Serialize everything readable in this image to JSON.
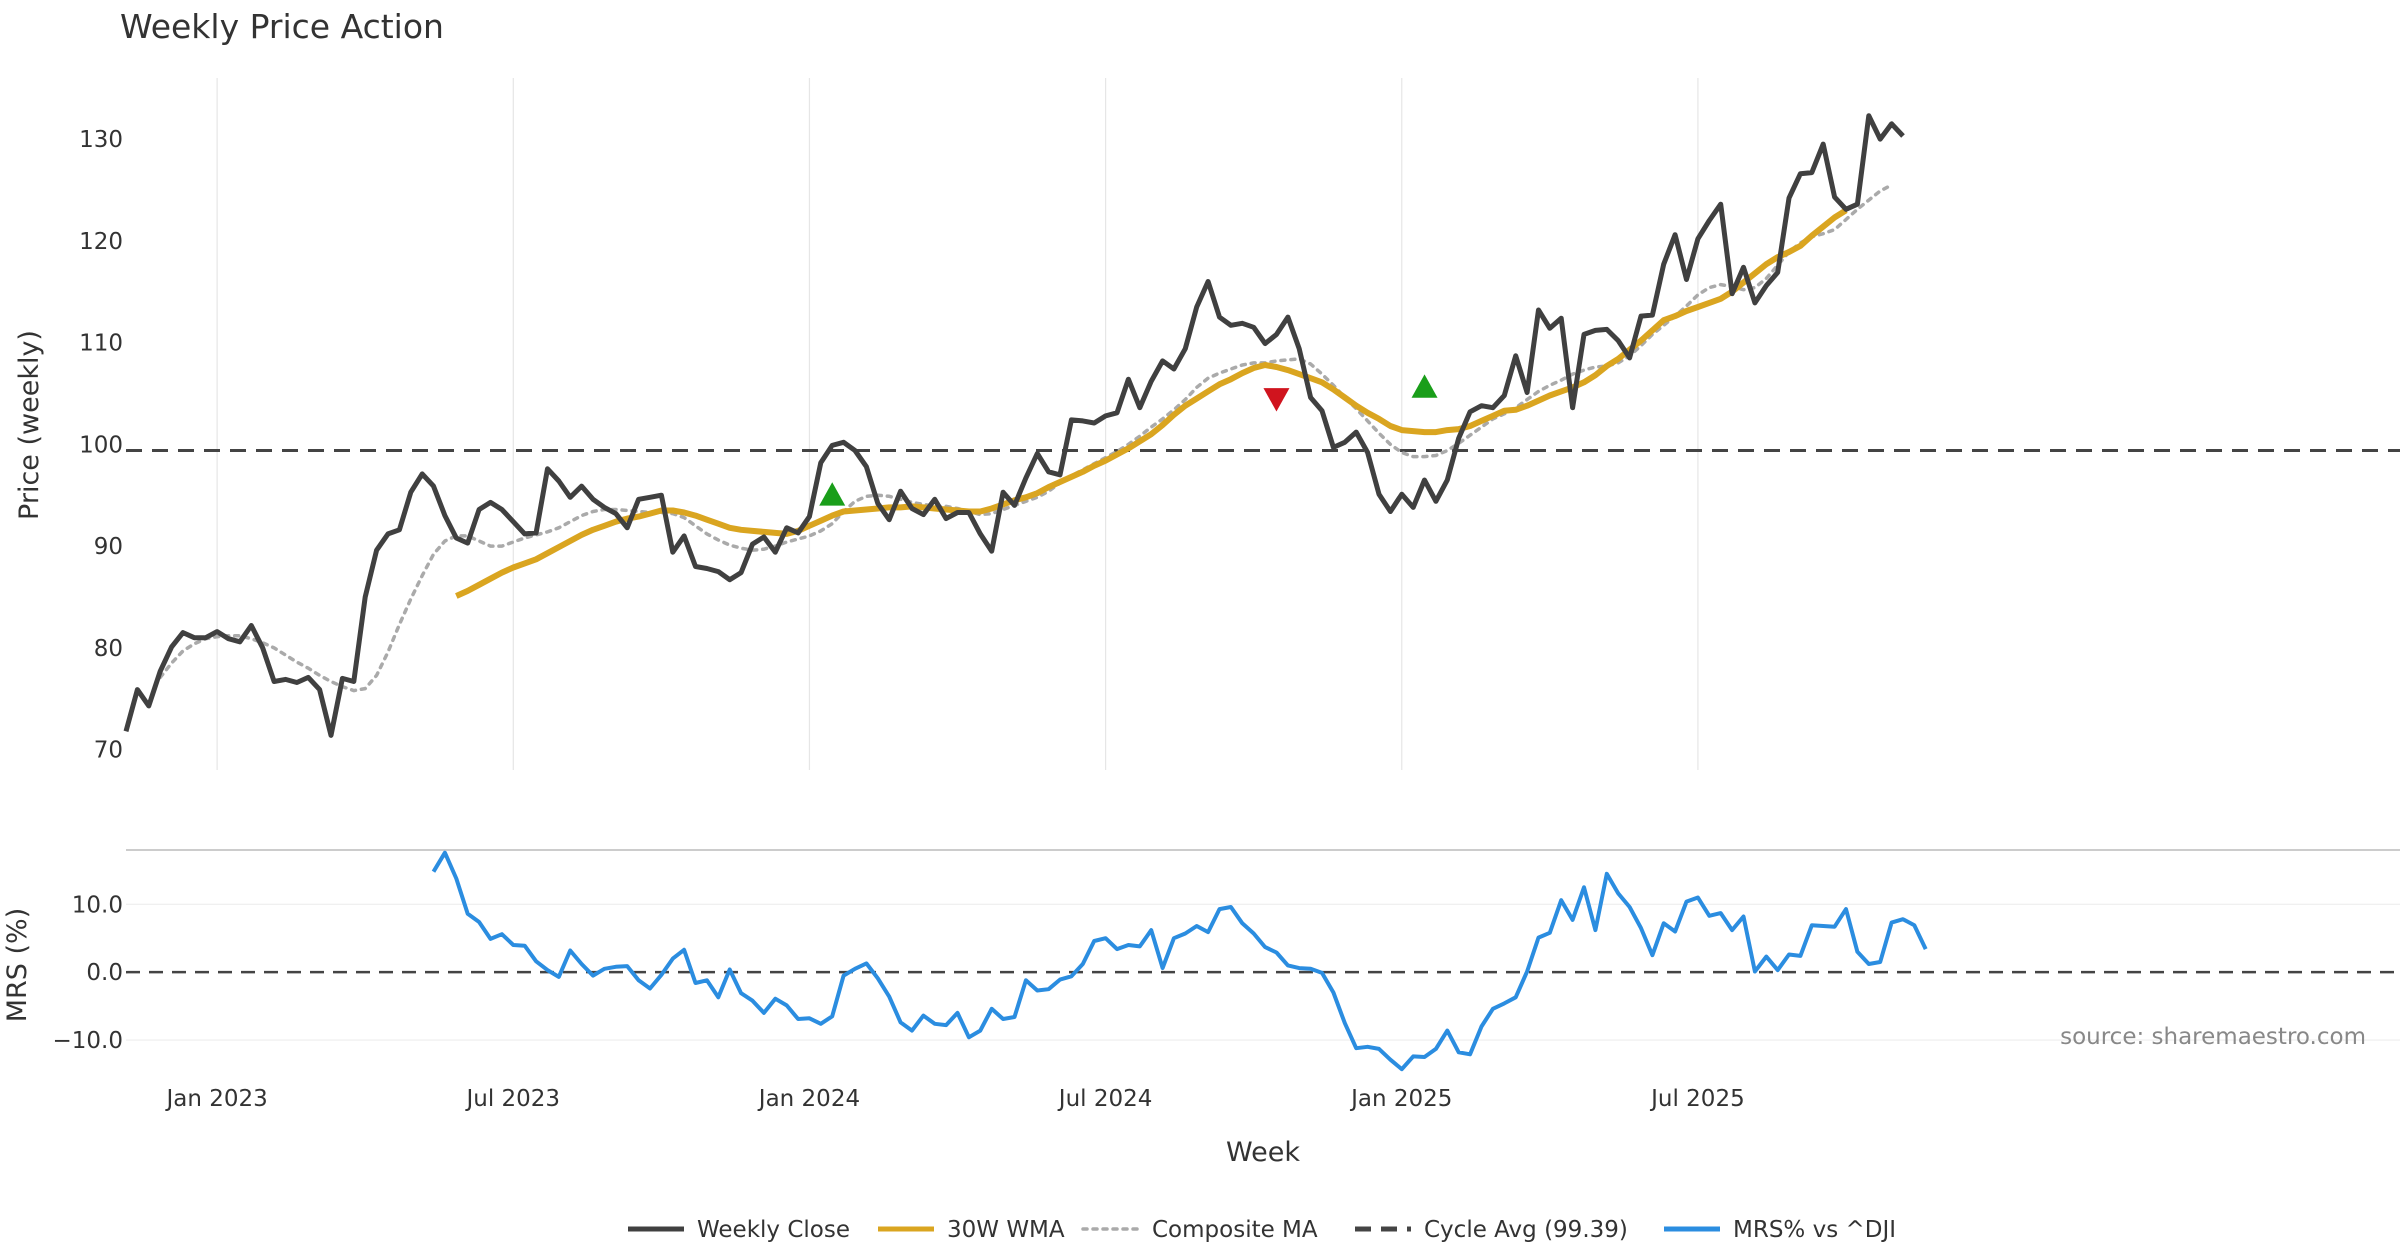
{
  "chart_data": [
    {
      "type": "line",
      "title": "Weekly Price Action",
      "ylabel": "Price (weekly)",
      "ylim": [
        68,
        136
      ],
      "yticks": [
        70,
        80,
        90,
        100,
        110,
        120,
        130
      ],
      "x_index_range": [
        0,
        151
      ],
      "series": [
        {
          "name": "Weekly Close",
          "color": "#404040",
          "start_index": 0,
          "values": [
            71.8,
            75.9,
            74.3,
            77.7,
            80.1,
            81.5,
            81.0,
            81.0,
            81.6,
            80.9,
            80.6,
            82.2,
            80.0,
            76.7,
            76.9,
            76.6,
            77.1,
            75.9,
            71.4,
            77.0,
            76.7,
            85.0,
            89.6,
            91.2,
            91.6,
            95.3,
            97.1,
            95.9,
            93.0,
            90.8,
            90.3,
            93.6,
            94.3,
            93.6,
            92.4,
            91.2,
            91.3,
            97.6,
            96.4,
            94.8,
            95.9,
            94.6,
            93.8,
            93.2,
            91.8,
            94.6,
            94.8,
            95.0,
            89.4,
            91.0,
            88.0,
            87.8,
            87.5,
            86.7,
            87.4,
            90.2,
            90.9,
            89.4,
            91.8,
            91.3,
            92.9,
            98.2,
            99.9,
            100.2,
            99.4,
            97.8,
            94.2,
            92.6,
            95.4,
            93.7,
            93.1,
            94.6,
            92.7,
            93.3,
            93.3,
            91.2,
            89.5,
            95.3,
            94.0,
            96.7,
            99.1,
            97.3,
            97.0,
            102.4,
            102.3,
            102.1,
            102.8,
            103.1,
            106.4,
            103.6,
            106.2,
            108.2,
            107.4,
            109.4,
            113.5,
            116.0,
            112.5,
            111.7,
            111.9,
            111.5,
            109.9,
            110.8,
            112.5,
            109.4,
            104.6,
            103.3,
            99.7,
            100.2,
            101.2,
            99.2,
            95.1,
            93.4,
            95.1,
            93.8,
            96.5,
            94.4,
            96.5,
            100.6,
            103.2,
            103.8,
            103.6,
            104.8,
            108.7,
            105.1,
            113.2,
            111.4,
            112.4,
            103.6,
            110.8,
            111.2,
            111.3,
            110.2,
            108.5,
            112.6,
            112.7,
            117.7,
            120.6,
            116.2,
            120.2,
            122.0,
            123.6,
            114.8,
            117.4,
            113.9,
            115.6,
            116.9,
            124.2,
            126.6,
            126.7,
            129.5,
            124.3,
            123.1,
            123.6,
            132.3,
            130.0,
            131.5,
            130.3
          ]
        },
        {
          "name": "30W WMA",
          "color": "#DAA520",
          "start_index": 29,
          "values": [
            85.1,
            85.6,
            86.2,
            86.8,
            87.4,
            87.9,
            88.3,
            88.7,
            89.3,
            89.9,
            90.5,
            91.1,
            91.6,
            92.0,
            92.4,
            92.7,
            92.9,
            93.2,
            93.5,
            93.5,
            93.3,
            93.0,
            92.6,
            92.2,
            91.8,
            91.6,
            91.5,
            91.4,
            91.3,
            91.2,
            91.5,
            92.0,
            92.5,
            93.0,
            93.4,
            93.5,
            93.6,
            93.7,
            93.8,
            93.8,
            93.9,
            93.8,
            93.7,
            93.6,
            93.5,
            93.4,
            93.4,
            93.7,
            94.1,
            94.5,
            94.8,
            95.2,
            95.8,
            96.3,
            96.8,
            97.3,
            97.9,
            98.4,
            99.0,
            99.6,
            100.3,
            101.0,
            101.9,
            102.9,
            103.8,
            104.5,
            105.2,
            105.9,
            106.4,
            107.0,
            107.5,
            107.8,
            107.6,
            107.3,
            106.9,
            106.5,
            106.1,
            105.4,
            104.6,
            103.8,
            103.1,
            102.5,
            101.8,
            101.4,
            101.3,
            101.2,
            101.2,
            101.4,
            101.5,
            101.8,
            102.3,
            102.8,
            103.3,
            103.4,
            103.8,
            104.3,
            104.8,
            105.2,
            105.6,
            106.1,
            106.8,
            107.7,
            108.4,
            109.3,
            110.2,
            111.2,
            112.2,
            112.6,
            113.1,
            113.5,
            113.9,
            114.3,
            115.0,
            115.9,
            116.8,
            117.7,
            118.4,
            118.9,
            119.5,
            120.5,
            121.4,
            122.3,
            123.0
          ]
        },
        {
          "name": "Composite MA",
          "color": "#aaaaaa",
          "start_index": 3,
          "values": [
            77.1,
            78.5,
            79.7,
            80.4,
            80.9,
            81.1,
            81.2,
            81.2,
            80.9,
            80.5,
            80.0,
            79.3,
            78.6,
            78.0,
            77.3,
            76.7,
            76.2,
            75.8,
            76.0,
            77.3,
            79.6,
            82.3,
            84.8,
            87.1,
            89.2,
            90.5,
            91.0,
            91.0,
            90.5,
            90.0,
            90.0,
            90.4,
            90.8,
            91.1,
            91.4,
            91.8,
            92.4,
            93.0,
            93.4,
            93.6,
            93.6,
            93.5,
            93.4,
            93.3,
            93.3,
            93.2,
            92.8,
            92.0,
            91.2,
            90.6,
            90.1,
            89.8,
            89.6,
            89.7,
            90.0,
            90.4,
            90.7,
            91.0,
            91.5,
            92.2,
            93.4,
            94.4,
            94.9,
            95.0,
            94.9,
            94.6,
            94.3,
            94.1,
            93.9,
            93.9,
            93.7,
            93.4,
            93.1,
            93.2,
            93.6,
            94.0,
            94.4,
            94.8,
            95.4,
            96.2,
            96.9,
            97.5,
            98.1,
            98.7,
            99.3,
            100.0,
            100.8,
            101.7,
            102.5,
            103.4,
            104.4,
            105.6,
            106.5,
            107.0,
            107.4,
            107.8,
            108.0,
            108.0,
            108.2,
            108.3,
            108.4,
            107.9,
            106.9,
            105.8,
            104.6,
            103.5,
            102.3,
            101.1,
            100.0,
            99.2,
            98.8,
            98.8,
            98.9,
            99.4,
            100.1,
            100.9,
            101.7,
            102.5,
            103.0,
            103.6,
            104.4,
            105.2,
            105.8,
            106.3,
            106.9,
            107.3,
            107.6,
            107.7,
            108.0,
            108.7,
            109.7,
            110.8,
            111.7,
            112.6,
            113.6,
            114.7,
            115.4,
            115.7,
            115.5,
            115.2,
            115.4,
            116.3,
            117.6,
            118.9,
            119.8,
            120.4,
            120.7,
            121.1,
            122.1,
            123.1,
            124.0,
            124.9,
            125.5
          ]
        },
        {
          "name": "Cycle Avg (99.39)",
          "color": "#444444",
          "constant": 99.39
        }
      ],
      "markers": [
        {
          "type": "buy",
          "color": "#1a9e1a",
          "index": 62,
          "value": 95.0
        },
        {
          "type": "sell",
          "color": "#d0141e",
          "index": 101,
          "value": 104.5
        },
        {
          "type": "buy",
          "color": "#1a9e1a",
          "index": 114,
          "value": 105.6
        }
      ],
      "grid": "vertical"
    },
    {
      "type": "line",
      "ylabel": "MRS (%)",
      "ylim": [
        -15,
        18
      ],
      "yticks": [
        -10.0,
        0.0,
        10.0
      ],
      "ytick_labels": [
        "−10.0",
        "0.0",
        "10.0"
      ],
      "series": [
        {
          "name": "MRS% vs ^DJI",
          "color": "#2b8de0",
          "start_index": 27,
          "values": [
            14.8,
            17.6,
            13.8,
            8.6,
            7.4,
            4.9,
            5.6,
            4.0,
            3.9,
            1.6,
            0.3,
            -0.7,
            3.2,
            1.2,
            -0.5,
            0.5,
            0.8,
            0.9,
            -1.2,
            -2.4,
            -0.4,
            2.0,
            3.3,
            -1.6,
            -1.2,
            -3.7,
            0.4,
            -3.1,
            -4.2,
            -6.0,
            -3.9,
            -4.9,
            -6.9,
            -6.8,
            -7.6,
            -6.5,
            -0.5,
            0.5,
            1.3,
            -0.9,
            -3.6,
            -7.4,
            -8.6,
            -6.4,
            -7.6,
            -7.8,
            -6.0,
            -9.6,
            -8.6,
            -5.4,
            -6.9,
            -6.6,
            -1.2,
            -2.7,
            -2.5,
            -1.1,
            -0.6,
            1.2,
            4.6,
            5.0,
            3.4,
            4.0,
            3.8,
            6.2,
            0.6,
            5.0,
            5.7,
            6.8,
            5.9,
            9.3,
            9.6,
            7.2,
            5.7,
            3.7,
            2.9,
            1.0,
            0.6,
            0.5,
            -0.1,
            -3.0,
            -7.5,
            -11.2,
            -11.0,
            -11.3,
            -12.9,
            -14.3,
            -12.4,
            -12.5,
            -11.3,
            -8.6,
            -11.8,
            -12.1,
            -8.0,
            -5.4,
            -4.6,
            -3.7,
            0.1,
            5.1,
            5.8,
            10.6,
            7.7,
            12.5,
            6.2,
            14.5,
            11.6,
            9.6,
            6.5,
            2.5,
            7.2,
            6.0,
            10.4,
            11.0,
            8.3,
            8.7,
            6.2,
            8.2,
            0.1,
            2.3,
            0.3,
            2.6,
            2.4,
            6.9,
            6.8,
            6.7,
            9.3,
            3.0,
            1.2,
            1.5,
            7.3,
            7.8,
            6.9,
            3.4
          ]
        },
        {
          "name": "Zero line",
          "color": "#444444",
          "constant": 0
        }
      ],
      "xlabel": "Week",
      "xticks": [
        {
          "label": "Jan 2023",
          "index": 8
        },
        {
          "label": "Jul 2023",
          "index": 34
        },
        {
          "label": "Jan 2024",
          "index": 60
        },
        {
          "label": "Jul 2024",
          "index": 86
        },
        {
          "label": "Jan 2025",
          "index": 112
        },
        {
          "label": "Jul 2025",
          "index": 138
        }
      ],
      "annotation": "source: sharemaestro.com"
    }
  ],
  "legend": {
    "placement": "bottom-center",
    "items": [
      {
        "label": "Weekly Close",
        "color": "#404040",
        "style": "solid"
      },
      {
        "label": "30W WMA",
        "color": "#DAA520",
        "style": "solid"
      },
      {
        "label": "Composite MA",
        "color": "#aaaaaa",
        "style": "dotted"
      },
      {
        "label": "Cycle Avg (99.39)",
        "color": "#444444",
        "style": "dashed"
      },
      {
        "label": "MRS% vs ^DJI",
        "color": "#2b8de0",
        "style": "solid"
      }
    ]
  }
}
